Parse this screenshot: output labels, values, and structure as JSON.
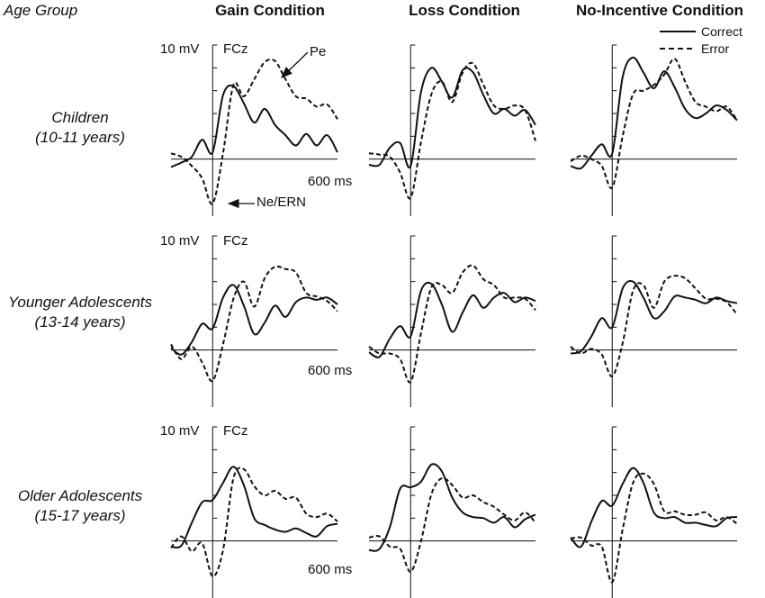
{
  "header": {
    "age_group": "Age Group"
  },
  "columns": [
    "Gain Condition",
    "Loss Condition",
    "No-Incentive Condition"
  ],
  "rows": [
    {
      "line1": "Children",
      "line2": "(10-11 years)"
    },
    {
      "line1": "Younger Adolescents",
      "line2": "(13-14 years)"
    },
    {
      "line1": "Older Adolescents",
      "line2": "(15-17 years)"
    }
  ],
  "labels": {
    "scale": "10 mV",
    "channel": "FCz",
    "time": "600 ms"
  },
  "annotations": {
    "pe": "Pe",
    "ne": "Ne/ERN"
  },
  "legend": {
    "correct": "Correct",
    "error": "Error"
  },
  "colors": {
    "line": "#111111",
    "background": "#ffffff"
  },
  "chart_data": {
    "type": "line",
    "xlim": [
      -200,
      600
    ],
    "ylim": [
      -5,
      10
    ],
    "x": [
      -200,
      -150,
      -100,
      -50,
      0,
      50,
      100,
      150,
      200,
      250,
      300,
      350,
      400,
      450,
      500,
      550,
      600
    ],
    "series_styles": {
      "Correct": "solid",
      "Error": "dashed"
    },
    "panels": [
      {
        "row": "Children",
        "column": "Gain Condition",
        "series": [
          {
            "name": "Correct",
            "values": [
              -0.7,
              -0.3,
              0.2,
              1.7,
              0.6,
              5.6,
              6.4,
              4.9,
              3.2,
              4.4,
              3.0,
              2.1,
              1.2,
              2.2,
              1.2,
              2.1,
              0.6
            ]
          },
          {
            "name": "Error",
            "values": [
              0.5,
              0.2,
              -0.6,
              -1.7,
              -3.9,
              0.5,
              6.5,
              5.5,
              7.0,
              8.5,
              8.6,
              7.0,
              5.5,
              5.3,
              4.6,
              4.8,
              3.5
            ]
          }
        ]
      },
      {
        "row": "Children",
        "column": "Loss Condition",
        "series": [
          {
            "name": "Correct",
            "values": [
              -0.5,
              -0.5,
              1.0,
              1.4,
              -0.6,
              5.9,
              8.0,
              6.8,
              5.4,
              7.8,
              7.6,
              5.6,
              4.0,
              4.4,
              3.8,
              4.3,
              3.0
            ]
          },
          {
            "name": "Error",
            "values": [
              0.5,
              0.4,
              0.2,
              -1.2,
              -3.4,
              1.5,
              5.7,
              6.8,
              5.0,
              7.6,
              8.4,
              6.5,
              4.7,
              4.4,
              4.7,
              4.3,
              1.6
            ]
          }
        ]
      },
      {
        "row": "Children",
        "column": "No-Incentive Condition",
        "series": [
          {
            "name": "Correct",
            "values": [
              -0.6,
              -0.8,
              0.3,
              1.3,
              0.5,
              7.2,
              8.9,
              7.6,
              6.2,
              7.7,
              6.3,
              4.4,
              3.6,
              4.0,
              4.7,
              4.3,
              3.4
            ]
          },
          {
            "name": "Error",
            "values": [
              -0.2,
              0.3,
              0.0,
              -0.6,
              -2.5,
              2.0,
              5.7,
              6.0,
              6.5,
              7.4,
              8.8,
              6.8,
              5.0,
              4.6,
              4.2,
              4.6,
              3.4
            ]
          }
        ]
      },
      {
        "row": "Younger Adolescents",
        "column": "Gain Condition",
        "series": [
          {
            "name": "Correct",
            "values": [
              0.2,
              -0.4,
              0.7,
              2.3,
              1.9,
              4.6,
              5.7,
              3.9,
              1.4,
              2.4,
              3.9,
              2.9,
              4.2,
              4.6,
              4.4,
              4.6,
              4.0
            ]
          },
          {
            "name": "Error",
            "values": [
              0.5,
              -0.8,
              0.3,
              -1.1,
              -2.7,
              0.5,
              4.5,
              6.0,
              3.8,
              6.3,
              7.3,
              7.1,
              6.8,
              5.0,
              4.7,
              4.3,
              3.4
            ]
          }
        ]
      },
      {
        "row": "Younger Adolescents",
        "column": "Loss Condition",
        "series": [
          {
            "name": "Correct",
            "values": [
              -0.2,
              -0.6,
              1.0,
              2.1,
              1.2,
              5.2,
              5.8,
              4.0,
              1.6,
              3.3,
              4.8,
              3.7,
              4.6,
              5.0,
              4.2,
              4.6,
              4.3
            ]
          },
          {
            "name": "Error",
            "values": [
              0.3,
              -0.3,
              -0.3,
              -0.8,
              -2.8,
              1.5,
              5.5,
              5.7,
              5.0,
              6.8,
              7.4,
              6.2,
              5.7,
              4.6,
              4.6,
              4.5,
              3.5
            ]
          }
        ]
      },
      {
        "row": "Younger Adolescents",
        "column": "No-Incentive Condition",
        "series": [
          {
            "name": "Correct",
            "values": [
              -0.3,
              -0.1,
              1.2,
              2.8,
              2.0,
              5.4,
              6.0,
              4.6,
              2.8,
              3.4,
              4.7,
              4.6,
              4.4,
              4.1,
              4.6,
              4.3,
              4.1
            ]
          },
          {
            "name": "Error",
            "values": [
              0.3,
              -0.3,
              0.1,
              -0.4,
              -2.3,
              0.6,
              5.2,
              5.7,
              3.7,
              6.0,
              6.5,
              6.3,
              5.4,
              4.5,
              4.5,
              4.2,
              3.1
            ]
          }
        ]
      },
      {
        "row": "Older Adolescents",
        "column": "Gain Condition",
        "series": [
          {
            "name": "Correct",
            "values": [
              -0.5,
              -0.4,
              1.6,
              3.4,
              3.6,
              5.1,
              6.5,
              4.9,
              2.0,
              1.4,
              1.0,
              0.8,
              1.1,
              0.7,
              0.4,
              1.3,
              1.5
            ]
          },
          {
            "name": "Error",
            "values": [
              -0.6,
              0.4,
              -0.9,
              -0.2,
              -3.1,
              -0.8,
              5.5,
              6.3,
              4.8,
              4.0,
              4.4,
              3.7,
              3.8,
              2.4,
              2.1,
              2.4,
              1.7
            ]
          }
        ]
      },
      {
        "row": "Older Adolescents",
        "column": "Loss Condition",
        "series": [
          {
            "name": "Correct",
            "values": [
              -0.8,
              -0.7,
              1.2,
              4.6,
              4.7,
              5.2,
              6.7,
              6.1,
              3.8,
              2.5,
              2.1,
              2.0,
              1.6,
              2.1,
              1.2,
              1.9,
              2.3
            ]
          },
          {
            "name": "Error",
            "values": [
              0.3,
              0.4,
              -0.5,
              -0.7,
              -2.7,
              0.0,
              4.1,
              5.5,
              4.9,
              3.8,
              4.0,
              3.4,
              3.0,
              2.3,
              1.8,
              2.5,
              1.6
            ]
          }
        ]
      },
      {
        "row": "Older Adolescents",
        "column": "No-Incentive Condition",
        "series": [
          {
            "name": "Correct",
            "values": [
              0.3,
              -0.5,
              1.7,
              3.5,
              3.1,
              5.0,
              6.4,
              5.1,
              2.5,
              2.0,
              2.1,
              1.6,
              1.6,
              1.4,
              1.3,
              2.0,
              2.1
            ]
          },
          {
            "name": "Error",
            "values": [
              0.2,
              0.3,
              -0.4,
              -0.5,
              -3.6,
              1.0,
              5.1,
              5.9,
              5.0,
              2.6,
              2.6,
              2.3,
              2.3,
              2.5,
              1.8,
              2.1,
              1.5
            ]
          }
        ]
      }
    ]
  }
}
